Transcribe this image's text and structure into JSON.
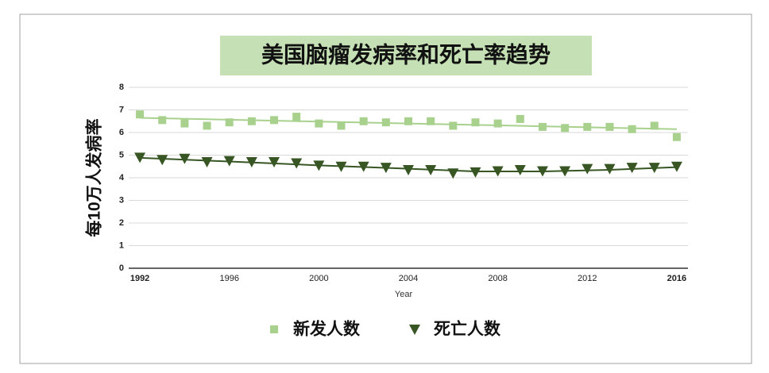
{
  "chart_data": {
    "type": "scatter",
    "title": "美国脑瘤发病率和死亡率趋势",
    "x_label": "Year",
    "y_label": "每10万人发病率",
    "x": [
      1992,
      1993,
      1994,
      1995,
      1996,
      1997,
      1998,
      1999,
      2000,
      2001,
      2002,
      2003,
      2004,
      2005,
      2006,
      2007,
      2008,
      2009,
      2010,
      2011,
      2012,
      2013,
      2014,
      2015,
      2016
    ],
    "series": [
      {
        "name": "新发人数",
        "color": "#a9d18e",
        "marker": "square",
        "values": [
          6.8,
          6.55,
          6.4,
          6.3,
          6.45,
          6.5,
          6.55,
          6.7,
          6.4,
          6.3,
          6.5,
          6.45,
          6.5,
          6.5,
          6.3,
          6.45,
          6.4,
          6.6,
          6.25,
          6.2,
          6.25,
          6.25,
          6.15,
          6.3,
          5.8
        ]
      },
      {
        "name": "死亡人数",
        "color": "#375623",
        "marker": "triangle-down",
        "values": [
          4.9,
          4.8,
          4.85,
          4.7,
          4.75,
          4.7,
          4.7,
          4.65,
          4.55,
          4.5,
          4.5,
          4.45,
          4.35,
          4.35,
          4.2,
          4.25,
          4.3,
          4.35,
          4.3,
          4.3,
          4.4,
          4.4,
          4.45,
          4.45,
          4.5
        ]
      }
    ],
    "trendlines": [
      {
        "color": "#a9d18e",
        "x": [
          1992,
          2016
        ],
        "values": [
          6.65,
          6.15
        ]
      },
      {
        "color": "#375623",
        "x": [
          1992,
          1996,
          2000,
          2004,
          2007,
          2010,
          2013,
          2016
        ],
        "values": [
          4.88,
          4.72,
          4.55,
          4.4,
          4.28,
          4.28,
          4.35,
          4.47
        ]
      }
    ],
    "xlim": [
      1991.5,
      2016.5
    ],
    "xticks": [
      1992,
      1996,
      2000,
      2004,
      2008,
      2012,
      2016
    ],
    "ylim": [
      0,
      8
    ],
    "yticks": [
      0,
      1,
      2,
      3,
      4,
      5,
      6,
      7,
      8
    ],
    "grid": true,
    "legend": "bottom"
  }
}
